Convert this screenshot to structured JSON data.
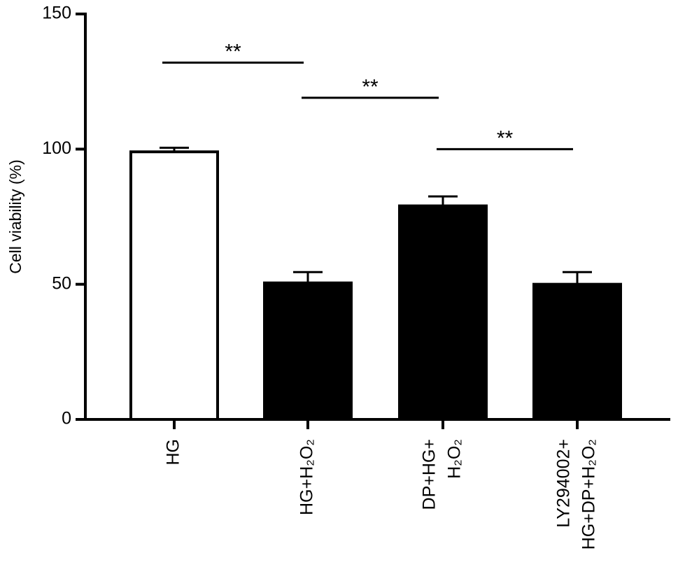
{
  "chart_data": {
    "type": "bar",
    "ylabel": "Cell viability (%)",
    "categories": [
      [
        "HG"
      ],
      [
        "HG+H₂O₂"
      ],
      [
        "DP+HG+",
        "H₂O₂"
      ],
      [
        "LY294002+",
        "HG+DP+H₂O₂"
      ]
    ],
    "values": [
      99,
      50.5,
      79,
      50
    ],
    "errors": [
      1.5,
      4,
      3.5,
      4.5
    ],
    "colors": [
      "#ffffff",
      "#000000",
      "#000000",
      "#000000"
    ],
    "ylim": [
      0,
      150
    ],
    "yticks": [
      0,
      50,
      100,
      150
    ],
    "annotations": [
      {
        "text": "**",
        "y": 132
      },
      {
        "text": "**",
        "y": 119
      },
      {
        "text": "**",
        "y": 100
      }
    ]
  }
}
